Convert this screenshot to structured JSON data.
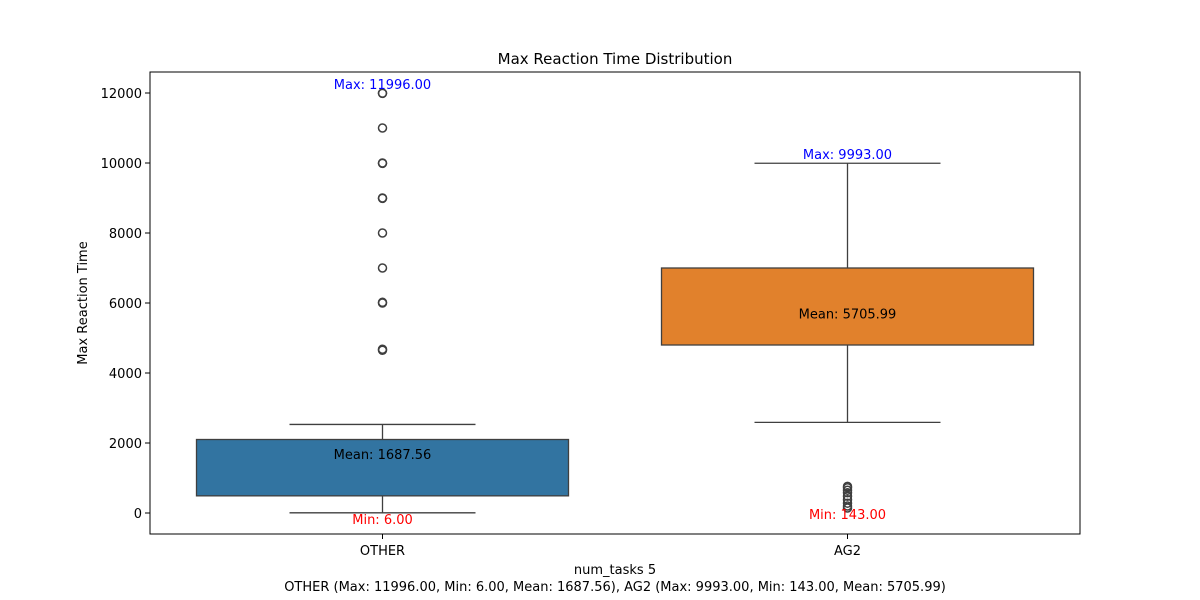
{
  "chart_data": {
    "type": "box",
    "title": "Max Reaction Time Distribution",
    "xlabel": "num_tasks 5",
    "ylabel": "Max Reaction Time",
    "subtitle": "OTHER (Max: 11996.00, Min: 6.00, Mean: 1687.56), AG2 (Max: 9993.00, Min: 143.00, Mean: 5705.99)",
    "ylim": [
      -600,
      12600
    ],
    "yticks": [
      0,
      2000,
      4000,
      6000,
      8000,
      10000,
      12000
    ],
    "ytick_labels": [
      "0",
      "2000",
      "4000",
      "6000",
      "8000",
      "10000",
      "12000"
    ],
    "grid": false,
    "categories": [
      "OTHER",
      "AG2"
    ],
    "boxes": [
      {
        "category": "OTHER",
        "color": "#3274a1",
        "q1": 490,
        "q3": 2100,
        "whisker_low": 6,
        "whisker_high": 2530,
        "outliers": [
          4650,
          4680,
          6000,
          6020,
          7000,
          8000,
          8990,
          9000,
          9990,
          10000,
          11000,
          11990,
          11996
        ],
        "max_label": "Max: 11996.00",
        "min_label": "Min: 6.00",
        "mean_label": "Mean: 1687.56",
        "max_value": 11996,
        "min_value": 6,
        "mean_value": 1687.56
      },
      {
        "category": "AG2",
        "color": "#e1812c",
        "q1": 4800,
        "q3": 7000,
        "whisker_low": 2590,
        "whisker_high": 9993,
        "outliers": [
          143,
          200,
          280,
          380,
          480,
          580,
          650,
          720,
          760
        ],
        "max_label": "Max: 9993.00",
        "min_label": "Min: 143.00",
        "mean_label": "Mean: 5705.99",
        "max_value": 9993,
        "min_value": 143,
        "mean_value": 5705.99
      }
    ],
    "label_colors": {
      "max": "#0000ff",
      "min": "#ff0000",
      "mean": "#000000"
    }
  }
}
